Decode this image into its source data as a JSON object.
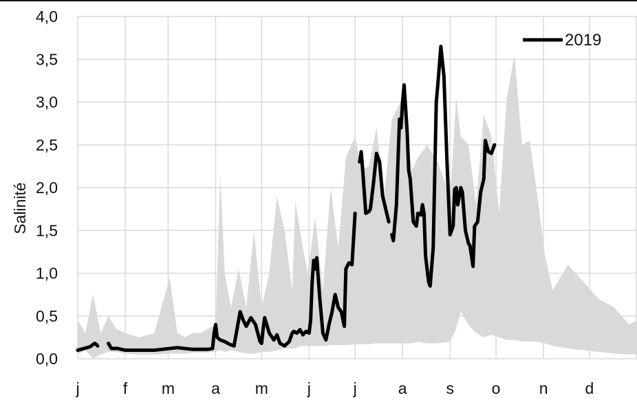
{
  "chart_data": {
    "type": "line",
    "title": "",
    "xlabel": "",
    "ylabel": "Salinité",
    "ylim": [
      0,
      4
    ],
    "yticks": [
      0,
      0.5,
      1,
      1.5,
      2,
      2.5,
      3,
      3.5,
      4
    ],
    "ytick_labels": [
      "0,0",
      "0,5",
      "1,0",
      "1,5",
      "2,0",
      "2,5",
      "3,0",
      "3,5",
      "4,0"
    ],
    "xlim": [
      0,
      365
    ],
    "xticks": [
      0,
      31,
      59,
      90,
      120,
      151,
      181,
      212,
      243,
      273,
      304,
      334
    ],
    "xtick_labels": [
      "j",
      "f",
      "m",
      "a",
      "m",
      "j",
      "j",
      "a",
      "s",
      "o",
      "n",
      "d"
    ],
    "grid": true,
    "legend": {
      "position": "top-right",
      "entries": [
        "2019"
      ]
    },
    "colors": {
      "series": "#000000",
      "band": "#d9d9d9",
      "grid": "#d9d9d9"
    },
    "range_band": {
      "x": [
        0,
        5,
        10,
        15,
        20,
        25,
        31,
        40,
        50,
        60,
        65,
        70,
        75,
        80,
        90,
        93,
        96,
        100,
        105,
        110,
        115,
        120,
        125,
        130,
        135,
        140,
        142,
        145,
        150,
        155,
        160,
        165,
        170,
        175,
        181,
        185,
        190,
        195,
        200,
        205,
        212,
        218,
        222,
        228,
        235,
        243,
        247,
        250,
        255,
        260,
        265,
        270,
        275,
        280,
        285,
        290,
        295,
        300,
        305,
        310,
        320,
        330,
        340,
        350,
        360,
        365
      ],
      "upper": [
        0.45,
        0.3,
        0.75,
        0.3,
        0.5,
        0.35,
        0.3,
        0.25,
        0.3,
        0.95,
        0.3,
        0.25,
        0.3,
        0.3,
        0.4,
        2.15,
        1.0,
        0.6,
        1.05,
        0.6,
        1.5,
        0.6,
        1.0,
        1.9,
        1.5,
        0.8,
        1.85,
        1.5,
        1.0,
        1.65,
        0.8,
        2.0,
        1.3,
        2.35,
        2.6,
        2.2,
        2.25,
        2.7,
        1.9,
        2.8,
        3.05,
        2.2,
        2.35,
        2.5,
        2.3,
        1.9,
        3.05,
        2.6,
        2.5,
        1.8,
        2.85,
        2.6,
        1.7,
        3.05,
        3.55,
        2.5,
        2.55,
        1.9,
        1.2,
        0.8,
        1.1,
        0.9,
        0.7,
        0.6,
        0.4,
        0.45
      ],
      "lower": [
        0.05,
        0.1,
        0.0,
        0.05,
        0.08,
        0.08,
        0.06,
        0.05,
        0.05,
        0.06,
        0.06,
        0.06,
        0.07,
        0.07,
        0.08,
        0.1,
        0.08,
        0.1,
        0.08,
        0.06,
        0.06,
        0.08,
        0.08,
        0.1,
        0.12,
        0.12,
        0.12,
        0.15,
        0.15,
        0.15,
        0.15,
        0.16,
        0.16,
        0.16,
        0.17,
        0.17,
        0.17,
        0.18,
        0.18,
        0.18,
        0.18,
        0.18,
        0.2,
        0.18,
        0.18,
        0.2,
        0.35,
        0.55,
        0.4,
        0.3,
        0.25,
        0.28,
        0.25,
        0.22,
        0.22,
        0.2,
        0.2,
        0.2,
        0.18,
        0.15,
        0.12,
        0.1,
        0.08,
        0.06,
        0.05,
        0.05
      ]
    },
    "series": [
      {
        "name": "2019",
        "segments": [
          {
            "x": [
              0,
              4,
              8,
              11,
              12,
              13
            ],
            "y": [
              0.1,
              0.12,
              0.14,
              0.18,
              0.17,
              0.15
            ]
          },
          {
            "x": [
              20,
              22,
              26,
              31,
              40,
              50,
              60,
              65,
              70,
              75,
              80,
              85,
              88,
              89,
              90,
              91,
              93,
              96,
              99,
              102,
              104,
              106,
              108,
              110,
              113,
              116,
              119,
              120,
              121,
              122,
              125,
              128,
              130,
              132,
              135,
              138,
              140,
              141,
              143,
              145,
              147,
              149,
              151,
              152,
              153,
              154,
              155,
              156,
              158,
              160,
              162,
              164,
              166,
              168,
              170,
              172,
              174,
              175,
              177,
              179,
              181
            ],
            "y": [
              0.18,
              0.12,
              0.12,
              0.1,
              0.1,
              0.1,
              0.12,
              0.13,
              0.12,
              0.11,
              0.11,
              0.11,
              0.12,
              0.3,
              0.4,
              0.25,
              0.22,
              0.2,
              0.17,
              0.15,
              0.35,
              0.55,
              0.45,
              0.38,
              0.48,
              0.4,
              0.2,
              0.18,
              0.35,
              0.48,
              0.3,
              0.22,
              0.28,
              0.18,
              0.15,
              0.2,
              0.3,
              0.32,
              0.3,
              0.34,
              0.28,
              0.32,
              0.3,
              0.45,
              0.9,
              1.15,
              1.05,
              1.18,
              0.7,
              0.3,
              0.22,
              0.4,
              0.55,
              0.75,
              0.6,
              0.55,
              0.38,
              1.05,
              1.12,
              1.1,
              1.7
            ]
          },
          {
            "x": [
              184,
              185,
              186,
              188,
              190,
              191,
              193,
              195,
              197,
              199,
              201,
              203
            ],
            "y": [
              2.3,
              2.42,
              2.2,
              1.7,
              1.72,
              1.75,
              2.05,
              2.4,
              2.3,
              1.9,
              1.75,
              1.6
            ]
          },
          {
            "x": [
              205,
              206,
              208,
              210,
              211,
              212,
              213,
              215,
              216,
              217,
              219,
              221,
              222,
              224,
              225,
              226,
              227,
              229,
              230,
              232,
              234,
              235,
              237,
              239,
              241,
              243,
              245,
              246,
              247,
              248,
              250,
              251,
              253,
              255,
              256,
              258,
              259,
              261,
              263,
              265,
              266,
              268,
              270,
              272
            ],
            "y": [
              1.45,
              1.38,
              1.8,
              2.8,
              2.7,
              3.0,
              3.2,
              2.65,
              2.2,
              2.1,
              1.6,
              1.55,
              1.7,
              1.68,
              1.8,
              1.7,
              1.2,
              0.9,
              0.85,
              1.3,
              3.0,
              3.2,
              3.65,
              3.3,
              2.3,
              1.45,
              1.55,
              1.98,
              2.0,
              1.8,
              2.0,
              1.95,
              1.5,
              1.35,
              1.32,
              1.08,
              1.55,
              1.6,
              1.95,
              2.1,
              2.55,
              2.42,
              2.4,
              2.5
            ]
          }
        ]
      }
    ]
  }
}
